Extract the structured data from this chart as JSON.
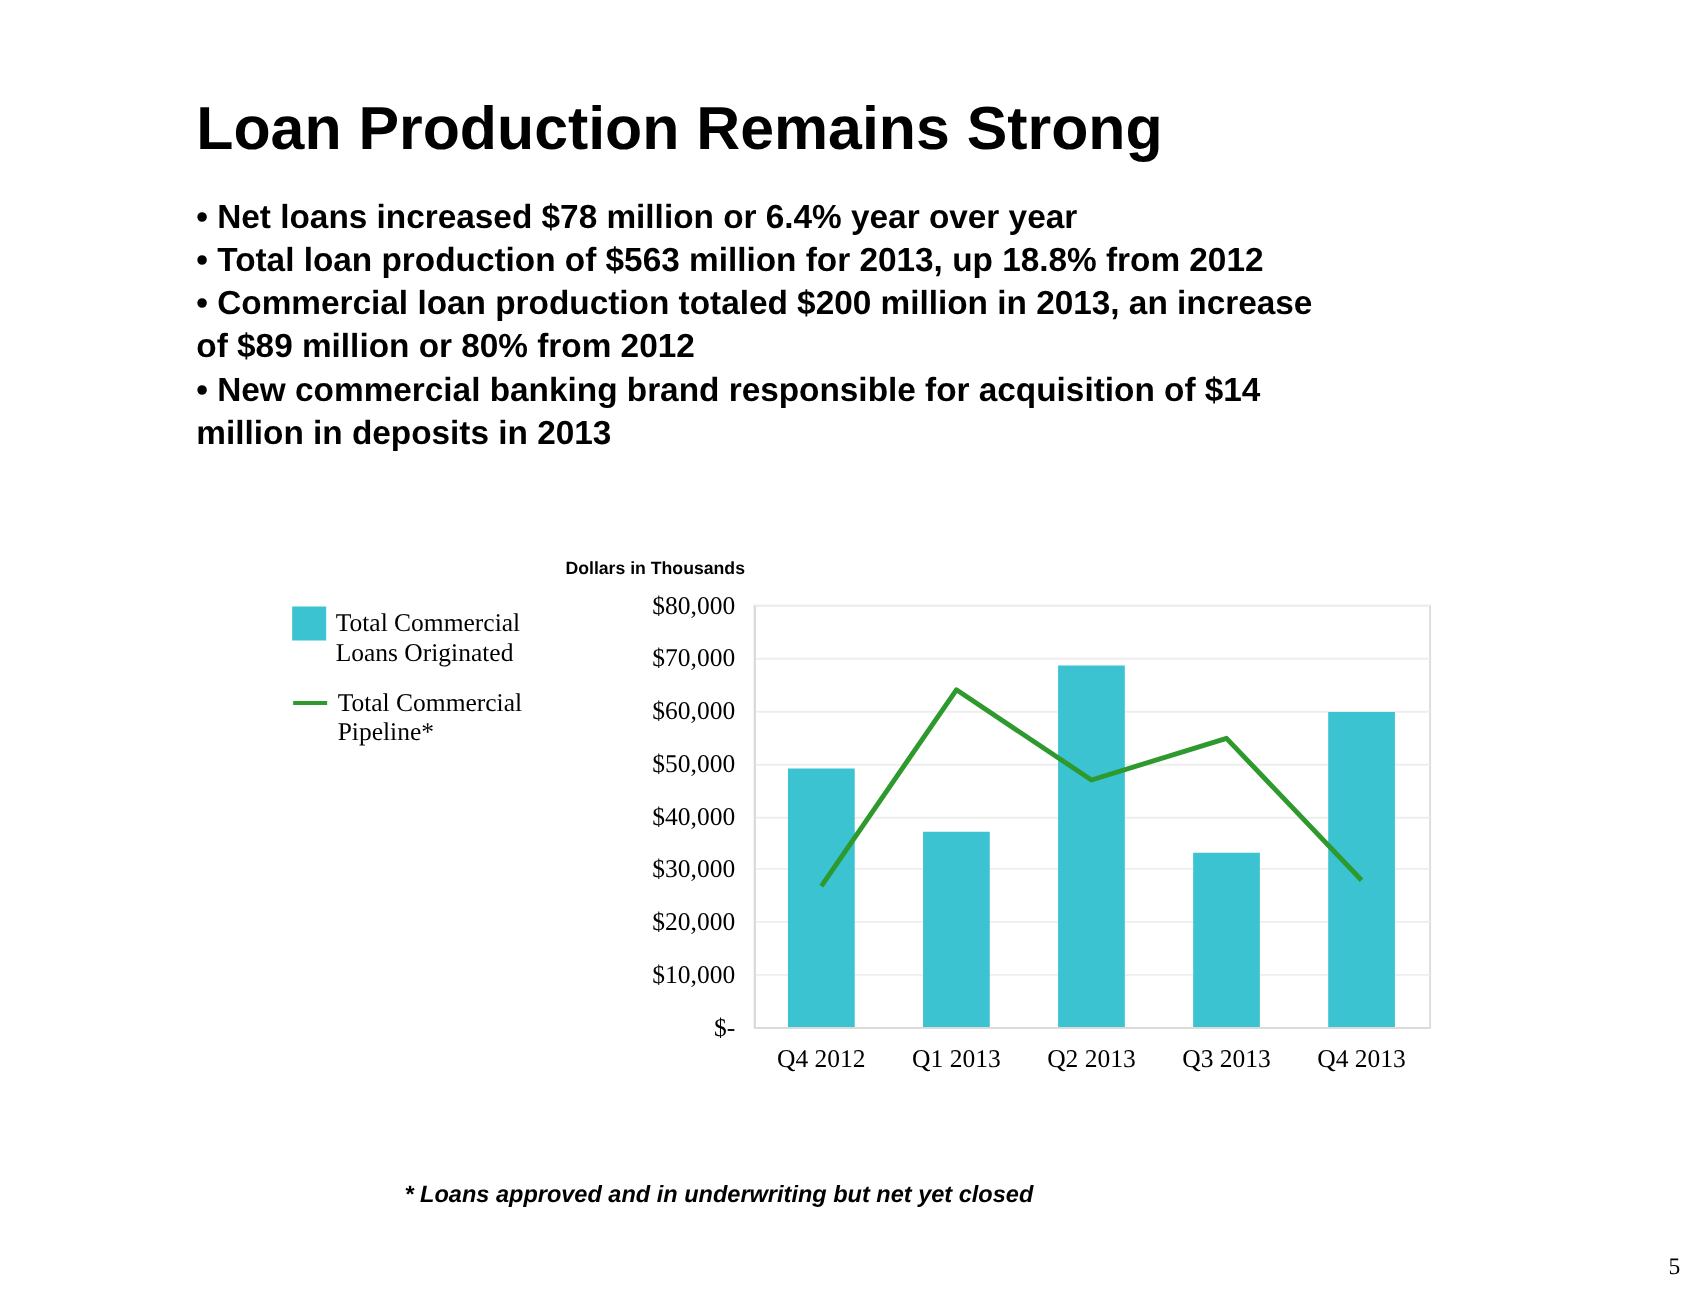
{
  "chart_data": {
    "type": "bar",
    "title": "Loan Production Remains Strong",
    "annotations": [
      "• Net loans increased $78 million or 6.4% year over year",
      "• Total loan production of $563 million for 2013, up 18.8% from 2012",
      "• Commercial loan production totaled $200 million in 2013, an increase of $89 million or 80% from 2012",
      "• New commercial banking brand responsible for acquisition of $14 million in deposits in 2013",
      "* Loans approved and in underwriting but net yet closed",
      "5"
    ],
    "ylabel": "Dollars in Thousands",
    "categories": [
      "Q4 2012",
      "Q1 2013",
      "Q2 2013",
      "Q3 2013",
      "Q4 2013"
    ],
    "series": [
      {
        "name": "Total Commercial Loans Originated",
        "color": "#3cc3d1",
        "values": [
          49000,
          37000,
          68500,
          33000,
          59700
        ]
      },
      {
        "name": "Total Commercial Pipeline*",
        "type": "line",
        "color": "#2e9a2e",
        "values": [
          26700,
          63900,
          46800,
          54700,
          27800
        ]
      }
    ],
    "ylim": [
      0,
      80000
    ],
    "yticks": [
      {
        "value": 0,
        "label": "$-"
      },
      {
        "value": 10000,
        "label": "$10,000"
      },
      {
        "value": 20000,
        "label": "$20,000"
      },
      {
        "value": 30000,
        "label": "$30,000"
      },
      {
        "value": 40000,
        "label": "$40,000"
      },
      {
        "value": 50000,
        "label": "$50,000"
      },
      {
        "value": 60000,
        "label": "$60,000"
      },
      {
        "value": 70000,
        "label": "$70,000"
      },
      {
        "value": 80000,
        "label": "$80,000"
      }
    ],
    "grid": "y",
    "legend": "left"
  }
}
